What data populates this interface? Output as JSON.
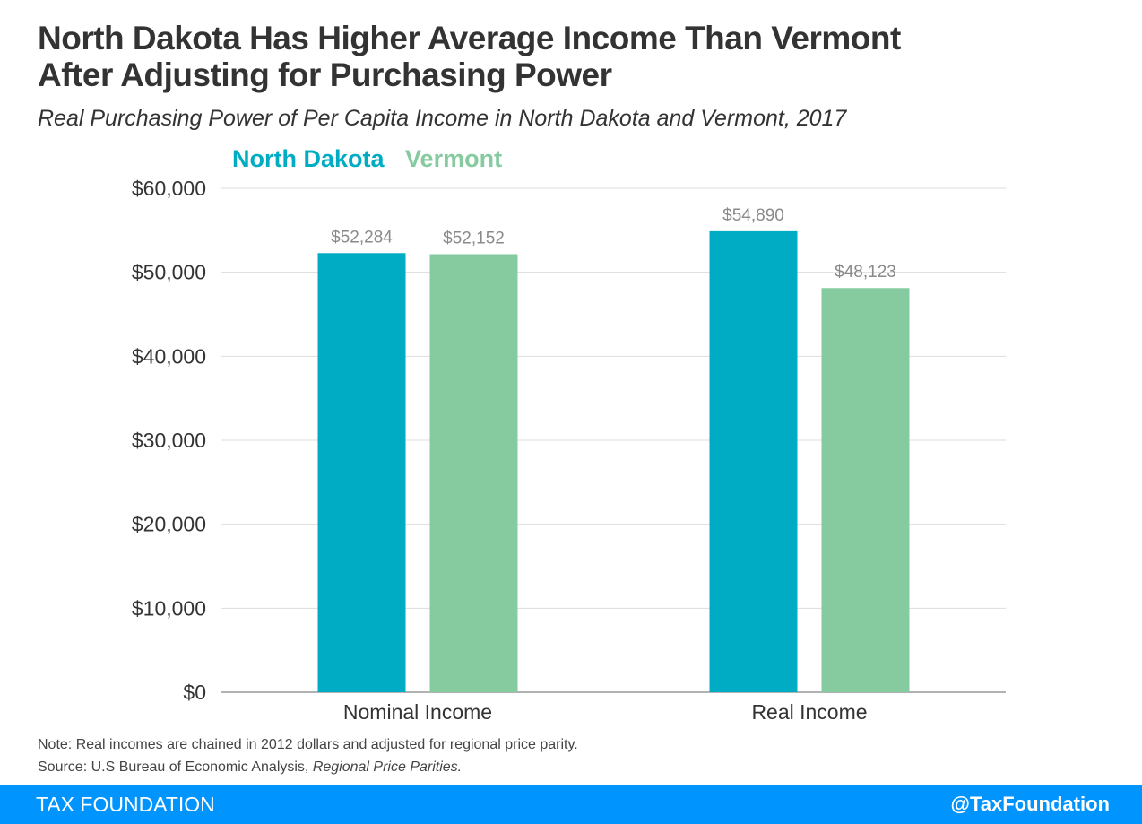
{
  "title_line1": "North Dakota Has Higher Average Income Than Vermont",
  "title_line2": "After Adjusting for Purchasing Power",
  "subtitle": "Real Purchasing Power of Per Capita Income in North Dakota and Vermont, 2017",
  "note": "Note: Real incomes are chained in 2012 dollars and adjusted for regional price parity.",
  "source_prefix": "Source: U.S Bureau of Economic Analysis, ",
  "source_title": "Regional Price Parities.",
  "footer": {
    "brand": "TAX FOUNDATION",
    "handle": "@TaxFoundation",
    "color": "#0094ff"
  },
  "chart_data": {
    "type": "bar",
    "title": "North Dakota Has Higher Average Income Than Vermont After Adjusting for Purchasing Power",
    "subtitle": "Real Purchasing Power of Per Capita Income in North Dakota and Vermont, 2017",
    "categories": [
      "Nominal Income",
      "Real Income"
    ],
    "series": [
      {
        "name": "North Dakota",
        "color": "#00acc4",
        "values": [
          52284,
          54890
        ],
        "labels": [
          "$52,284",
          "$54,890"
        ]
      },
      {
        "name": "Vermont",
        "color": "#86cba0",
        "values": [
          52152,
          48123
        ],
        "labels": [
          "$52,152",
          "$48,123"
        ]
      }
    ],
    "ylim": [
      0,
      60000
    ],
    "yticks": [
      0,
      10000,
      20000,
      30000,
      40000,
      50000,
      60000
    ],
    "ytick_labels": [
      "$0",
      "$10,000",
      "$20,000",
      "$30,000",
      "$40,000",
      "$50,000",
      "$60,000"
    ],
    "xlabel": "",
    "ylabel": "",
    "grid": true,
    "legend_position": "top-left"
  }
}
